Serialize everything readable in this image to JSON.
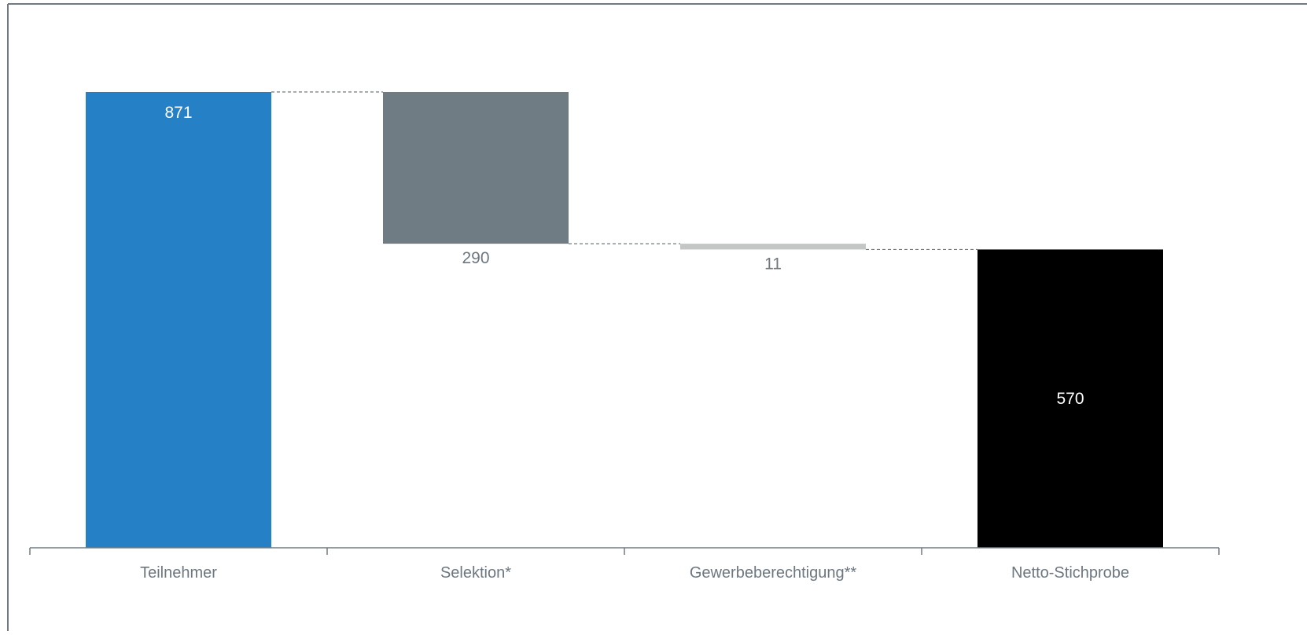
{
  "chart_data": {
    "type": "bar",
    "subtype": "waterfall",
    "title": "",
    "xlabel": "",
    "ylabel": "",
    "ylim": [
      0,
      1000
    ],
    "grid": false,
    "legend": "none",
    "categories": [
      "Teilnehmer",
      "Selektion*",
      "Gewerbeberechtigung**",
      "Netto-Stichprobe"
    ],
    "bars": [
      {
        "category": "Teilnehmer",
        "kind": "total",
        "value": 871,
        "label": "871",
        "base": 0,
        "top": 871,
        "color": "#2680C6",
        "label_color": "#ffffff"
      },
      {
        "category": "Selektion*",
        "kind": "decrease",
        "value": 290,
        "label": "290",
        "base": 581,
        "top": 871,
        "color": "#707C83",
        "label_color": "#6C7780"
      },
      {
        "category": "Gewerbeberechtigung**",
        "kind": "decrease",
        "value": 11,
        "label": "11",
        "base": 570,
        "top": 581,
        "color": "#C3C6C5",
        "label_color": "#6C7780"
      },
      {
        "category": "Netto-Stichprobe",
        "kind": "total",
        "value": 570,
        "label": "570",
        "base": 0,
        "top": 570,
        "color": "#000000",
        "label_color": "#ffffff"
      }
    ],
    "colors": {
      "frame": "#6E7B82",
      "axis": "#6E7B82",
      "connector": "#6E7B82",
      "tick_label": "#6C7780"
    }
  }
}
